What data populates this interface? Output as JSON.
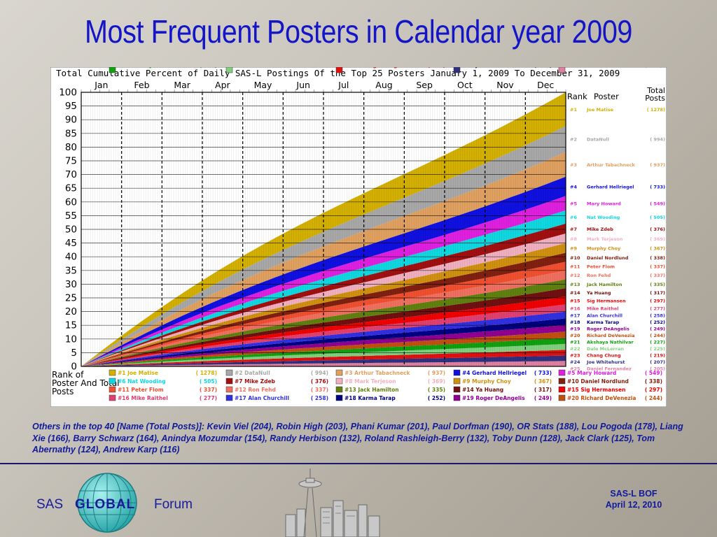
{
  "slide": {
    "title": "Most Frequent Posters in Calendar year 2009",
    "others_note": "Others in the top 40 [Name (Total Posts)]: Kevin Viel (204), Robin High (203), Phani Kumar (201), Paul Dorfman (190), OR Stats (188), Lou Pogoda (178), Liang Xie (166), Barry Schwarz (164), Anindya Mozumdar (154), Randy Herbison (132), Roland Rashleigh-Berry (132), Toby Dunn (128), Jack Clark (125), Tom Abernathy (124), Andrew Karp (116)",
    "footer": {
      "sas": "SAS",
      "global": "GLOBAL",
      "forum": "Forum",
      "event_name": "SAS-L BOF",
      "event_date": "April 12, 2010"
    },
    "colors": {
      "title": "#1515c8",
      "footer_text": "#1a1a9a",
      "footer_rule": "#18186e"
    }
  },
  "chart_data": {
    "type": "area",
    "stacked": true,
    "title": "Total Cumulative Percent of Daily SAS-L Postings Of the Top 25 Posters January 1, 2009 To December 31, 2009",
    "months": [
      "Jan",
      "Feb",
      "Mar",
      "Apr",
      "May",
      "Jun",
      "Jul",
      "Aug",
      "Sep",
      "Oct",
      "Nov",
      "Dec"
    ],
    "ylim": [
      0,
      100
    ],
    "yticks": [
      0,
      5,
      10,
      15,
      20,
      25,
      30,
      35,
      40,
      45,
      50,
      55,
      60,
      65,
      70,
      75,
      80,
      85,
      90,
      95,
      100
    ],
    "legend_title": "Rank of Poster And Total Posts",
    "right_panel_headers": {
      "rank": "Rank",
      "poster": "Poster",
      "total": "Total Posts"
    },
    "series": [
      {
        "rank": "#1",
        "name": "Joe Matise",
        "total": "1278",
        "color": "#d4b000"
      },
      {
        "rank": "#2",
        "name": "DataNull",
        "total": "994",
        "color": "#a8a8a8"
      },
      {
        "rank": "#3",
        "name": "Arthur Tabachneck",
        "total": "937",
        "color": "#e0a060"
      },
      {
        "rank": "#4",
        "name": "Gerhard Hellriegel",
        "total": "733",
        "color": "#1010e0"
      },
      {
        "rank": "#5",
        "name": "Mary Howard",
        "total": "549",
        "color": "#e020e0"
      },
      {
        "rank": "#6",
        "name": "Nat Wooding",
        "total": "505",
        "color": "#10d8e0"
      },
      {
        "rank": "#7",
        "name": "Mike Zdeb",
        "total": "376",
        "color": "#a01010"
      },
      {
        "rank": "#8",
        "name": "Mark Terjeson",
        "total": "369",
        "color": "#f0b0c0"
      },
      {
        "rank": "#9",
        "name": "Murphy Choy",
        "total": "367",
        "color": "#d09010"
      },
      {
        "rank": "#10",
        "name": "Daniel Nordlund",
        "total": "338",
        "color": "#802010"
      },
      {
        "rank": "#11",
        "name": "Peter Flom",
        "total": "337",
        "color": "#f05030"
      },
      {
        "rank": "#12",
        "name": "Ron Fehd",
        "total": "337",
        "color": "#f07060"
      },
      {
        "rank": "#13",
        "name": "Jack Hamilton",
        "total": "335",
        "color": "#608010"
      },
      {
        "rank": "#14",
        "name": "Ya Huang",
        "total": "317",
        "color": "#701010"
      },
      {
        "rank": "#15",
        "name": "Sig Hermansen",
        "total": "297",
        "color": "#f00000"
      },
      {
        "rank": "#16",
        "name": "Mike Raithel",
        "total": "277",
        "color": "#e04070"
      },
      {
        "rank": "#17",
        "name": "Alan Churchill",
        "total": "258",
        "color": "#3030e0"
      },
      {
        "rank": "#18",
        "name": "Karma Tarap",
        "total": "252",
        "color": "#000080"
      },
      {
        "rank": "#19",
        "name": "Roger DeAngelis",
        "total": "249",
        "color": "#900090"
      },
      {
        "rank": "#20",
        "name": "Richard DeVenezia",
        "total": "244",
        "color": "#c05010"
      },
      {
        "rank": "#21",
        "name": "Akshaya Nathilvar",
        "total": "227",
        "color": "#10a010"
      },
      {
        "rank": "#22",
        "name": "Dale McLerran",
        "total": "225",
        "color": "#80d080"
      },
      {
        "rank": "#23",
        "name": "Chang Chung",
        "total": "219",
        "color": "#e01010"
      },
      {
        "rank": "#24",
        "name": "Joe Whitehurst",
        "total": "207",
        "color": "#303080"
      },
      {
        "rank": "#25",
        "name": "Daniel Fernandez",
        "total": "205",
        "color": "#e080a0"
      }
    ]
  }
}
